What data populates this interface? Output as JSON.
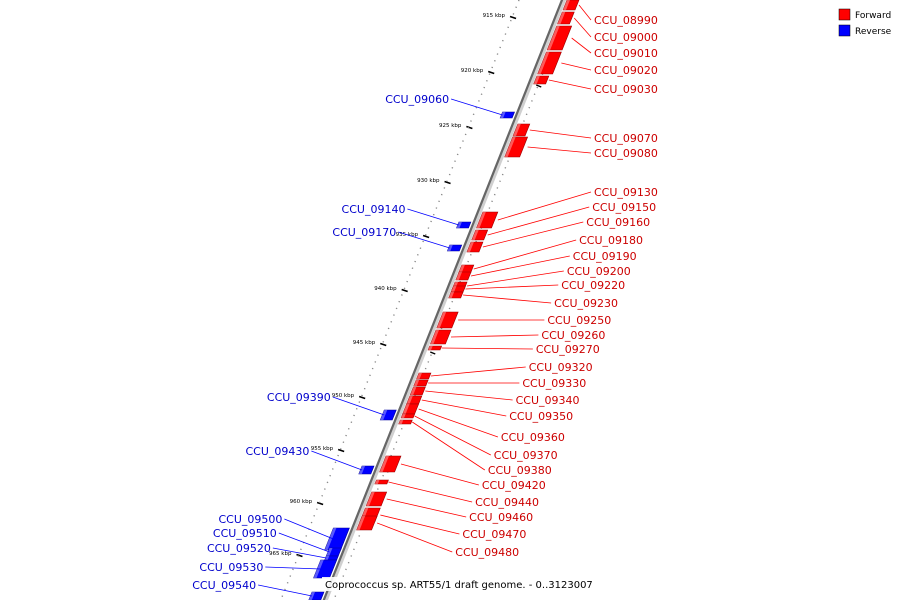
{
  "legend": {
    "forward": {
      "label": "Forward",
      "color": "#ff0000"
    },
    "reverse": {
      "label": "Reverse",
      "color": "#0000ff"
    }
  },
  "caption": "Coprococcus sp. ART55/1 draft genome. - 0..3123007",
  "ticks": [
    "915 kbp",
    "920 kbp",
    "925 kbp",
    "930 kbp",
    "935 kbp",
    "940 kbp",
    "945 kbp",
    "950 kbp",
    "955 kbp",
    "960 kbp",
    "965 kbp"
  ],
  "forward_genes": [
    "CCU_08990",
    "CCU_09000",
    "CCU_09010",
    "CCU_09020",
    "CCU_09030",
    "CCU_09070",
    "CCU_09080",
    "CCU_09130",
    "CCU_09150",
    "CCU_09160",
    "CCU_09180",
    "CCU_09190",
    "CCU_09200",
    "CCU_09220",
    "CCU_09230",
    "CCU_09250",
    "CCU_09260",
    "CCU_09270",
    "CCU_09320",
    "CCU_09330",
    "CCU_09340",
    "CCU_09350",
    "CCU_09360",
    "CCU_09370",
    "CCU_09380",
    "CCU_09420",
    "CCU_09440",
    "CCU_09460",
    "CCU_09470",
    "CCU_09480"
  ],
  "reverse_genes": [
    "CCU_09060",
    "CCU_09140",
    "CCU_09170",
    "CCU_09390",
    "CCU_09430",
    "CCU_09500",
    "CCU_09510",
    "CCU_09520",
    "CCU_09530",
    "CCU_09540"
  ]
}
